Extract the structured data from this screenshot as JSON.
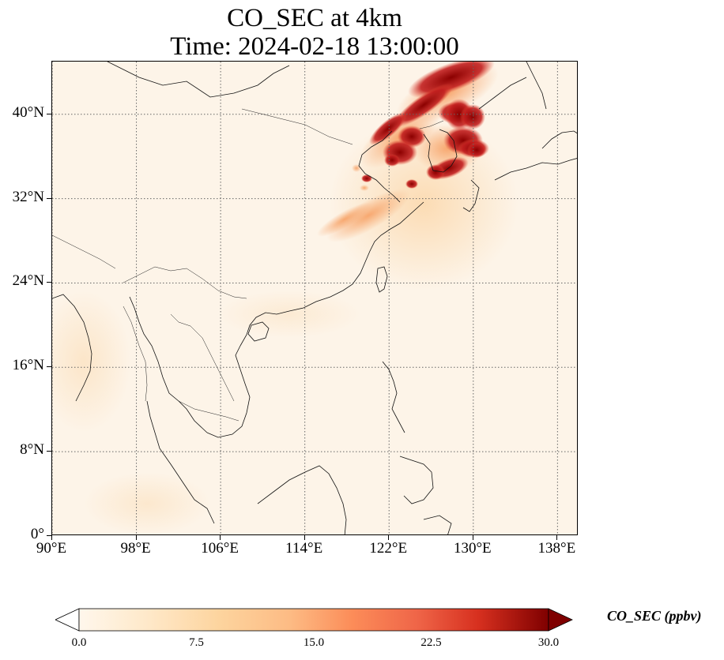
{
  "title": {
    "line1": "CO_SEC at 4km",
    "line2": "Time: 2024-02-18 13:00:00"
  },
  "map": {
    "projection": "PlateCarree",
    "lon_range": [
      90,
      140
    ],
    "lat_range": [
      0,
      45
    ],
    "gridlines": "dotted",
    "coastlines": true,
    "borders": true,
    "lat_ticks": [
      "0°",
      "8°N",
      "16°N",
      "24°N",
      "32°N",
      "40°N"
    ],
    "lon_ticks": [
      "90°E",
      "98°E",
      "106°E",
      "114°E",
      "122°E",
      "130°E",
      "138°E"
    ],
    "lat_tick_values": [
      0,
      8,
      16,
      24,
      32,
      40
    ],
    "lon_tick_values": [
      90,
      98,
      106,
      114,
      122,
      130,
      138
    ],
    "field_description_colors": {
      "background_low": "#fdf4e8",
      "moderate": "#fcc18a",
      "high": "#e34a33",
      "very_high": "#7f0000"
    }
  },
  "colorbar": {
    "label": "CO_SEC (ppbv)",
    "colormap": "OrRd",
    "min": 0.0,
    "max": 30.0,
    "extend": "both",
    "ticks": [
      "0.0",
      "7.5",
      "15.0",
      "22.5",
      "30.0"
    ],
    "tick_values": [
      0.0,
      7.5,
      15.0,
      22.5,
      30.0
    ]
  }
}
